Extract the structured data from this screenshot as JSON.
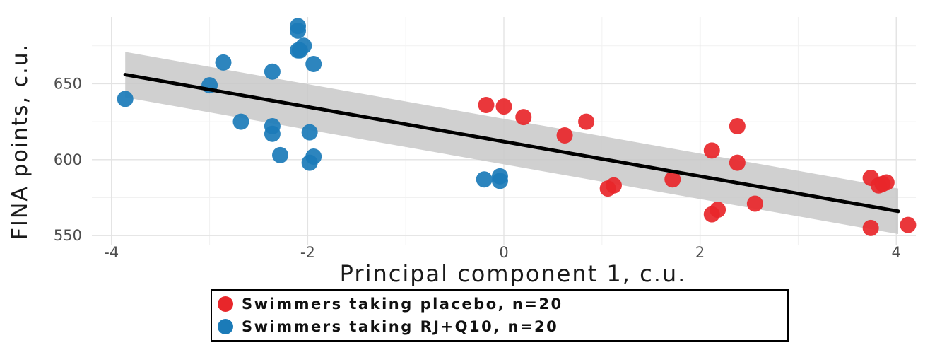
{
  "chart_data": {
    "type": "scatter",
    "xlabel": "Principal component 1, c.u.",
    "ylabel": "FINA points, c.u.",
    "xlim": [
      -4.2,
      4.2
    ],
    "ylim": [
      544,
      694
    ],
    "xticks": [
      -4,
      -2,
      0,
      2,
      4
    ],
    "yticks": [
      550,
      600,
      650
    ],
    "x_tick_labels": [
      "-4",
      "-2",
      "0",
      "2",
      "4"
    ],
    "y_tick_labels": [
      "550",
      "600",
      "650"
    ],
    "grid": true,
    "legend_position": "bottom",
    "series": [
      {
        "name": "Swimmers taking placebo, n=20",
        "color": "#e8262a",
        "points": [
          [
            -0.18,
            636
          ],
          [
            0.0,
            635
          ],
          [
            0.2,
            628
          ],
          [
            0.62,
            616
          ],
          [
            0.84,
            625
          ],
          [
            1.06,
            581
          ],
          [
            1.12,
            583
          ],
          [
            1.72,
            587
          ],
          [
            2.12,
            606
          ],
          [
            2.12,
            564
          ],
          [
            2.18,
            567
          ],
          [
            2.38,
            622
          ],
          [
            2.38,
            598
          ],
          [
            2.56,
            571
          ],
          [
            3.74,
            588
          ],
          [
            3.74,
            555
          ],
          [
            3.82,
            583
          ],
          [
            3.9,
            585
          ],
          [
            4.12,
            557
          ],
          [
            3.86,
            584
          ]
        ]
      },
      {
        "name": "Swimmers taking RJ+Q10, n=20",
        "color": "#1b7bb8",
        "points": [
          [
            -3.86,
            640
          ],
          [
            -3.0,
            649
          ],
          [
            -2.86,
            664
          ],
          [
            -2.68,
            625
          ],
          [
            -2.36,
            658
          ],
          [
            -2.36,
            622
          ],
          [
            -2.36,
            617
          ],
          [
            -2.28,
            603
          ],
          [
            -2.1,
            688
          ],
          [
            -2.1,
            685
          ],
          [
            -2.04,
            675
          ],
          [
            -2.08,
            672
          ],
          [
            -1.94,
            663
          ],
          [
            -1.98,
            618
          ],
          [
            -1.94,
            602
          ],
          [
            -1.98,
            598
          ],
          [
            -0.2,
            587
          ],
          [
            -0.04,
            589
          ],
          [
            -0.04,
            586
          ],
          [
            -2.1,
            672
          ]
        ]
      }
    ],
    "trend": {
      "start": [
        -3.86,
        656
      ],
      "end": [
        4.02,
        566
      ],
      "band_start": [
        641,
        671
      ],
      "band_end": [
        551,
        581
      ],
      "color": "#000000",
      "band_color": "#c8c8c8"
    }
  },
  "legend": {
    "items": [
      {
        "label": "Swimmers taking placebo, n=20",
        "color": "#e8262a"
      },
      {
        "label": "Swimmers taking RJ+Q10, n=20",
        "color": "#1b7bb8"
      }
    ]
  }
}
